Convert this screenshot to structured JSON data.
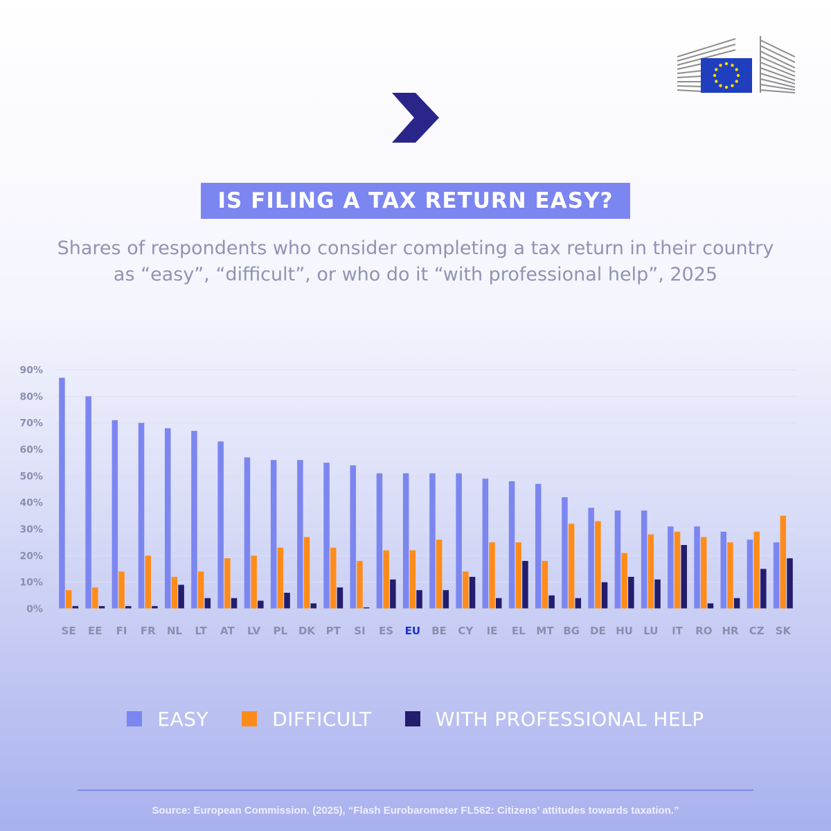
{
  "header": {
    "logo_icon": "european-commission-logo-icon",
    "chevron_icon": "chevron-right-icon"
  },
  "title": "IS FILING A TAX RETURN EASY?",
  "subtitle_line1": "Shares of respondents who consider completing a tax return in their country",
  "subtitle_line2": "as “easy”, “difficult”, or who do it “with professional help”, 2025",
  "colors": {
    "easy": "#7b86f0",
    "difficult": "#ff8c1a",
    "help": "#231d6e",
    "eu_highlight": "#1a33cc",
    "axis_text": "#8a8fae"
  },
  "chart_data": {
    "type": "bar",
    "categories": [
      "SE",
      "EE",
      "FI",
      "FR",
      "NL",
      "LT",
      "AT",
      "LV",
      "PL",
      "DK",
      "PT",
      "SI",
      "ES",
      "EU",
      "BE",
      "CY",
      "IE",
      "EL",
      "MT",
      "BG",
      "DE",
      "HU",
      "LU",
      "IT",
      "RO",
      "HR",
      "CZ",
      "SK"
    ],
    "highlight_category": "EU",
    "series": [
      {
        "name": "EASY",
        "values": [
          87,
          80,
          71,
          70,
          68,
          67,
          63,
          57,
          56,
          56,
          55,
          54,
          51,
          51,
          51,
          51,
          49,
          48,
          47,
          42,
          38,
          37,
          37,
          31,
          31,
          29,
          26,
          25
        ]
      },
      {
        "name": "DIFFICULT",
        "values": [
          7,
          8,
          14,
          20,
          12,
          14,
          19,
          20,
          23,
          27,
          23,
          18,
          22,
          22,
          26,
          14,
          25,
          25,
          18,
          32,
          33,
          21,
          28,
          29,
          27,
          25,
          29,
          35
        ]
      },
      {
        "name": "WITH PROFESSIONAL HELP",
        "values": [
          1,
          1,
          1,
          1,
          9,
          4,
          4,
          3,
          6,
          2,
          8,
          0.5,
          11,
          7,
          7,
          12,
          4,
          18,
          5,
          4,
          10,
          12,
          11,
          24,
          2,
          4,
          15,
          19
        ]
      }
    ],
    "yticks": [
      "0%",
      "10%",
      "20%",
      "30%",
      "40%",
      "50%",
      "60%",
      "70%",
      "80%",
      "90%"
    ],
    "ylim": [
      0,
      90
    ],
    "grid": true,
    "legend": "bottom"
  },
  "legend": [
    {
      "label": "EASY",
      "color": "#7b86f0"
    },
    {
      "label": "DIFFICULT",
      "color": "#ff8c1a"
    },
    {
      "label": "WITH PROFESSIONAL HELP",
      "color": "#231d6e"
    }
  ],
  "source": "Source: European Commission. (2025), “Flash Eurobarometer FL562: Citizens’ attitudes towards taxation.”"
}
